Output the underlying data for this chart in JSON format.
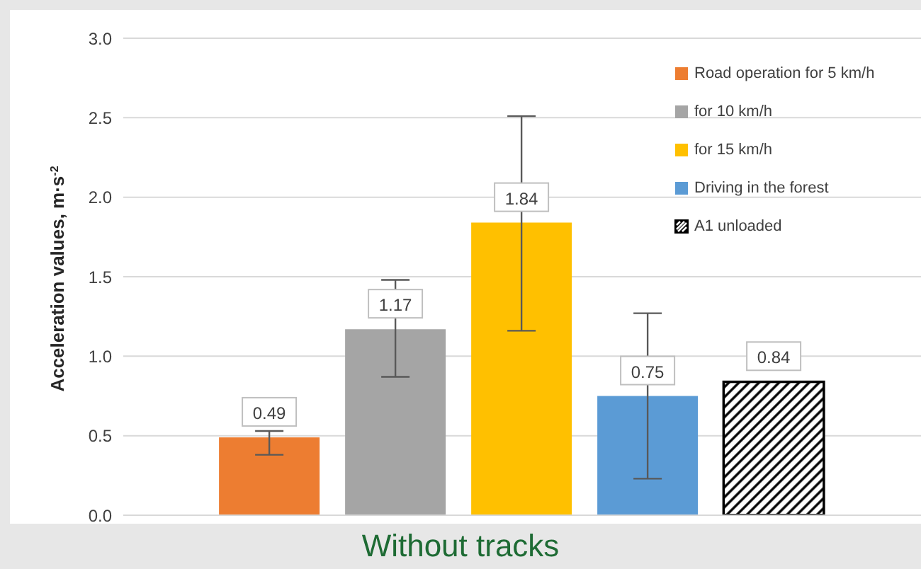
{
  "chart_data": {
    "type": "bar",
    "title": "Without tracks",
    "ylabel": "Acceleration values, m·s$^{-2}$",
    "categories": [
      null
    ],
    "series": [
      {
        "name": "Road operation for 5 km/h",
        "color": "#ed7d31",
        "values": [
          0.49
        ],
        "errors": [
          [
            0.38,
            0.53
          ]
        ]
      },
      {
        "name": "for 10 km/h",
        "color": "#a5a5a5",
        "values": [
          1.17
        ],
        "errors": [
          [
            0.87,
            1.48
          ]
        ]
      },
      {
        "name": "for 15 km/h",
        "color": "#ffc000",
        "values": [
          1.84
        ],
        "errors": [
          [
            1.16,
            2.51
          ]
        ]
      },
      {
        "name": "Driving in the forest",
        "color": "#5b9bd5",
        "values": [
          0.75
        ],
        "errors": [
          [
            0.23,
            1.27
          ]
        ]
      },
      {
        "name": "A1 unloaded",
        "color": "#000000",
        "values": [
          0.84
        ]
      }
    ],
    "ylim": [
      0,
      3
    ],
    "yticks": [
      {
        "value": 0,
        "label": "0.0"
      },
      {
        "value": 0.5,
        "label": "0.5"
      },
      {
        "value": 1,
        "label": "1.0"
      },
      {
        "value": 1.5,
        "label": "1.5"
      },
      {
        "value": 2,
        "label": "2.0"
      },
      {
        "value": 2.5,
        "label": "2.5"
      },
      {
        "value": 3,
        "label": "3.0"
      }
    ],
    "grid": "y",
    "legend": "top right",
    "data_labels": true
  }
}
